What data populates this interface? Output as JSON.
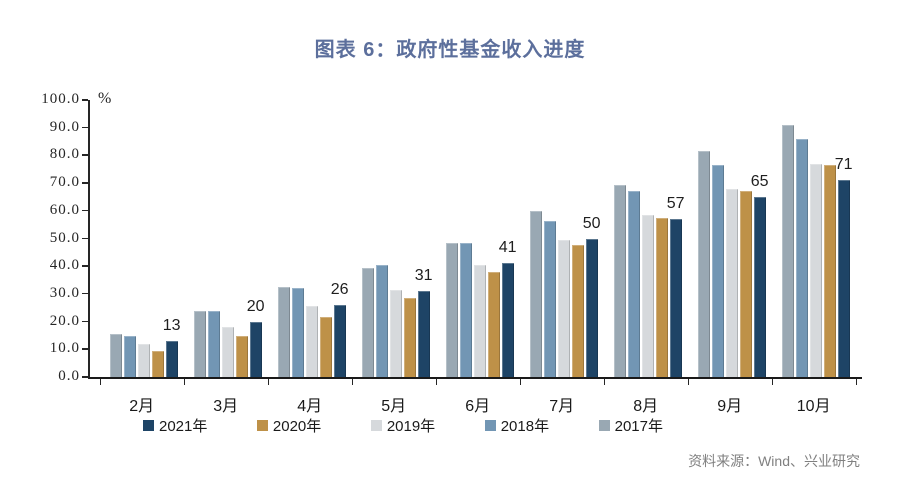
{
  "title": "图表 6：政府性基金收入进度",
  "source_note": "资料来源：Wind、兴业研究",
  "colors": {
    "title_text": "#5c6f9c",
    "axis_text": "#262626",
    "data_label_text": "#1f1f1f",
    "source_text": "#808080"
  },
  "chart_data": {
    "type": "bar",
    "title": "图表 6：政府性基金收入进度",
    "unit_label": "%",
    "xlabel": "",
    "ylabel": "%",
    "ylim": [
      0,
      100
    ],
    "grid": false,
    "legend_position": "bottom",
    "y_ticks": [
      "100.0",
      "90.0",
      "80.0",
      "70.0",
      "60.0",
      "50.0",
      "40.0",
      "30.0",
      "20.0",
      "10.0",
      "0.0"
    ],
    "categories": [
      "2月",
      "3月",
      "4月",
      "5月",
      "6月",
      "7月",
      "8月",
      "9月",
      "10月"
    ],
    "series": [
      {
        "name": "2017年",
        "color": "#99a8b3",
        "values": [
          15.5,
          24,
          32.5,
          39.5,
          48.5,
          60,
          69.5,
          81.5,
          91
        ]
      },
      {
        "name": "2018年",
        "color": "#7296b4",
        "values": [
          15,
          24,
          32,
          40.5,
          48.5,
          56.5,
          67,
          76.5,
          86
        ]
      },
      {
        "name": "2019年",
        "color": "#d6d9dc",
        "values": [
          12,
          18,
          25.5,
          31.5,
          40.5,
          49.5,
          58.5,
          68,
          77
        ]
      },
      {
        "name": "2020年",
        "color": "#be9148",
        "values": [
          9.5,
          15,
          21.5,
          28.5,
          38,
          47.5,
          57.5,
          67,
          76.5
        ]
      },
      {
        "name": "2021年",
        "color": "#1e4466",
        "values": [
          13,
          20,
          26,
          31,
          41,
          50,
          57,
          65,
          71
        ],
        "data_labels": true
      }
    ],
    "data_label_values": [
      "13",
      "20",
      "26",
      "31",
      "41",
      "50",
      "57",
      "65",
      "71"
    ],
    "legend_order": [
      "2021年",
      "2020年",
      "2019年",
      "2018年",
      "2017年"
    ]
  }
}
